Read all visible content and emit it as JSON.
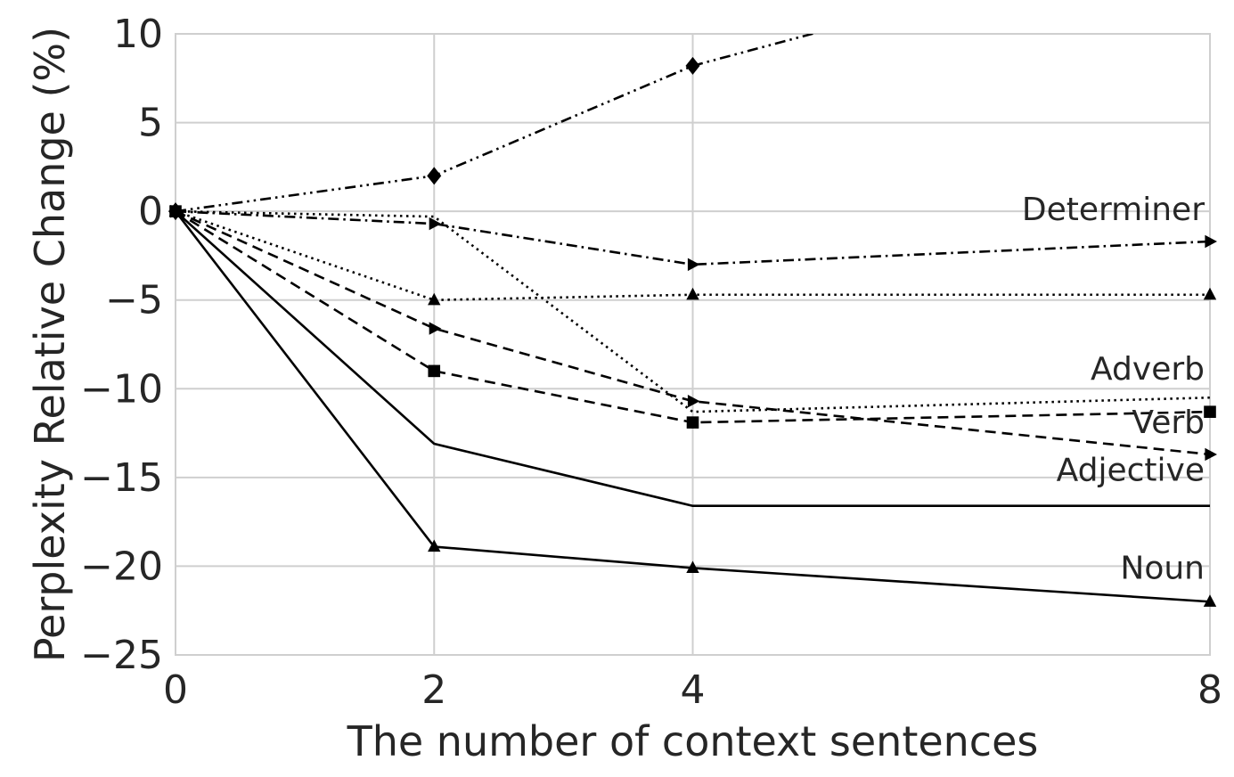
{
  "chart_data": {
    "type": "line",
    "xlabel": "The number of context sentences",
    "ylabel": "Perplexity Relative Change (%)",
    "xlim": [
      0,
      8
    ],
    "ylim": [
      -25,
      10
    ],
    "xticks": [
      0,
      2,
      4,
      8
    ],
    "yticks": [
      10,
      5,
      0,
      -5,
      -10,
      -15,
      -20,
      -25
    ],
    "xtick_labels": [
      "0",
      "2",
      "4",
      "8"
    ],
    "ytick_labels": [
      "10",
      "5",
      "0",
      "−5",
      "−10",
      "−15",
      "−20",
      "−25"
    ],
    "grid": true,
    "legend": "none",
    "x": [
      0,
      2,
      4,
      8
    ],
    "series": [
      {
        "values": [
          0,
          2.0,
          8.2,
          16.0
        ],
        "dash": "dashdotdot",
        "marker": "diamond",
        "color": "#000000"
      },
      {
        "name": "Determiner",
        "values": [
          0,
          -0.7,
          -3.0,
          -1.7
        ],
        "dash": "dashdot",
        "marker": "triangle-right",
        "color": "#000000"
      },
      {
        "values": [
          0,
          -5.0,
          -4.7,
          -4.7
        ],
        "dash": "dotted",
        "marker": "triangle-up",
        "color": "#000000"
      },
      {
        "name": "Adverb",
        "values": [
          0,
          -0.3,
          -11.3,
          -10.5
        ],
        "dash": "dotted",
        "marker": "none",
        "color": "#000000"
      },
      {
        "name": "Verb",
        "values": [
          0,
          -6.6,
          -10.7,
          -13.7
        ],
        "dash": "dashed",
        "marker": "triangle-right",
        "color": "#000000"
      },
      {
        "values": [
          0,
          -9.0,
          -11.9,
          -11.3
        ],
        "dash": "dashed",
        "marker": "square",
        "color": "#000000"
      },
      {
        "name": "Adjective",
        "values": [
          0,
          -13.1,
          -16.6,
          -16.6
        ],
        "dash": "solid",
        "marker": "none",
        "color": "#000000"
      },
      {
        "name": "Noun",
        "values": [
          0,
          -18.9,
          -20.1,
          -22.0
        ],
        "dash": "solid",
        "marker": "triangle-up",
        "color": "#000000"
      }
    ],
    "annotations": [
      "Determiner",
      "Adverb",
      "Verb",
      "Adjective",
      "Noun"
    ],
    "colors": {
      "grid": "#cfcfcf",
      "line": "#000000",
      "text": "#262626"
    }
  }
}
